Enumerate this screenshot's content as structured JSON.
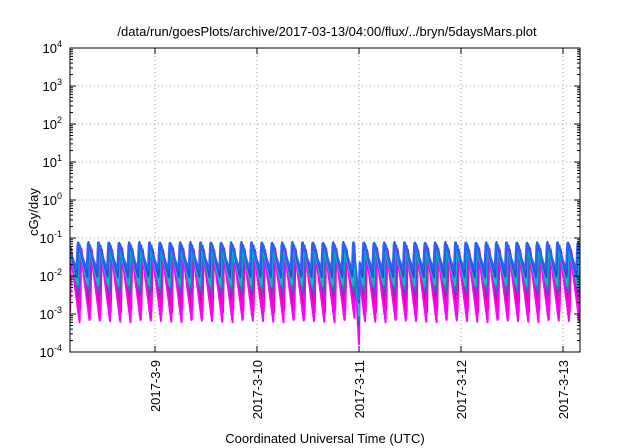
{
  "chart_data": {
    "type": "line",
    "title": "/data/run/goesPlots/archive/2017-03-13/04:00/flux/../bryn/5daysMars.plot",
    "xlabel": "Coordinated Universal Time (UTC)",
    "ylabel": "cGy/day",
    "yscale": "log",
    "ylim": [
      0.0001,
      10000
    ],
    "y_ticks": [
      {
        "value": 0.0001,
        "base": "10",
        "exp": "-4"
      },
      {
        "value": 0.001,
        "base": "10",
        "exp": "-3"
      },
      {
        "value": 0.01,
        "base": "10",
        "exp": "-2"
      },
      {
        "value": 0.1,
        "base": "10",
        "exp": "-1"
      },
      {
        "value": 1,
        "base": "10",
        "exp": "0"
      },
      {
        "value": 10,
        "base": "10",
        "exp": "1"
      },
      {
        "value": 100,
        "base": "10",
        "exp": "2"
      },
      {
        "value": 1000,
        "base": "10",
        "exp": "3"
      },
      {
        "value": 10000,
        "base": "10",
        "exp": "4"
      }
    ],
    "xlim": [
      "2017-03-08 04:00",
      "2017-03-13 04:00"
    ],
    "x_ticks": [
      {
        "value": "2017-03-09 00:00",
        "label": "2017-3-9"
      },
      {
        "value": "2017-03-10 00:00",
        "label": "2017-3-10"
      },
      {
        "value": "2017-03-11 00:00",
        "label": "2017-3-11"
      },
      {
        "value": "2017-03-12 00:00",
        "label": "2017-3-12"
      },
      {
        "value": "2017-03-13 00:00",
        "label": "2017-3-13"
      }
    ],
    "grid": true,
    "cycle_hours": 2.4,
    "dip": {
      "start": "2017-03-10 23:00",
      "end": "2017-03-11 00:00",
      "recover": "2017-03-11 00:10"
    },
    "series": [
      {
        "color": "#e0007a",
        "peak": 0.055,
        "trough": 0.0011,
        "dip_min": 0.00025
      },
      {
        "color": "#ff00ff",
        "peak": 0.045,
        "trough": 0.0006,
        "dip_min": 0.00016
      },
      {
        "color": "#7a3cc8",
        "peak": 0.065,
        "trough": 0.003,
        "dip_min": 0.0005
      },
      {
        "color": "#0096a0",
        "peak": 0.07,
        "trough": 0.0045,
        "dip_min": 0.0007
      },
      {
        "color": "#00c0c0",
        "peak": 0.06,
        "trough": 0.0055,
        "dip_min": 0.0009
      },
      {
        "color": "#2a50d8",
        "peak": 0.08,
        "trough": 0.009,
        "dip_min": 0.002
      },
      {
        "color": "#3060ff",
        "peak": 0.075,
        "trough": 0.015,
        "dip_min": 0.0025
      }
    ]
  }
}
